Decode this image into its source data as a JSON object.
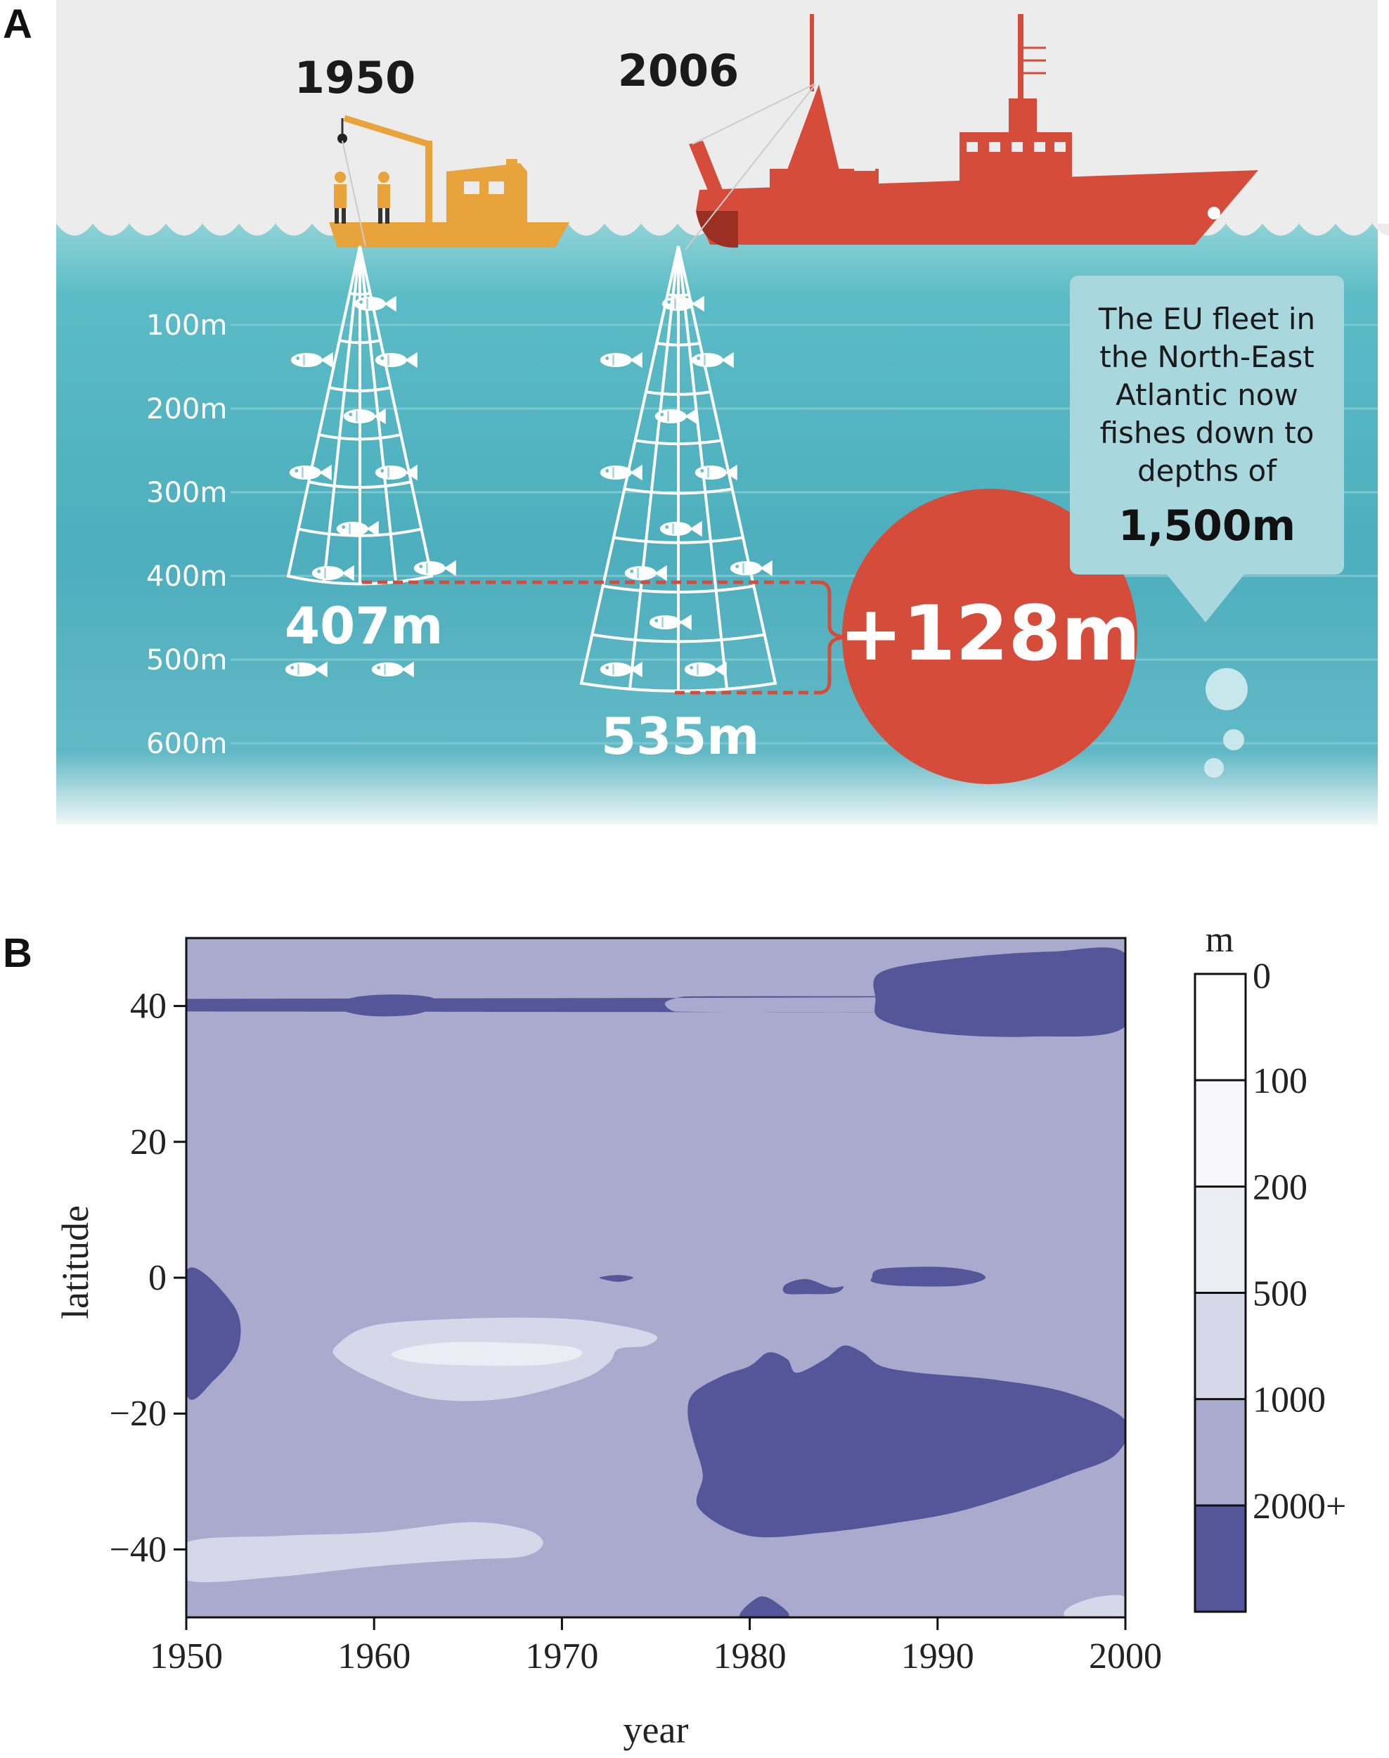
{
  "panel_a": {
    "letter": "A",
    "year_left": "1950",
    "year_right": "2006",
    "depth_labels": [
      "100m",
      "200m",
      "300m",
      "400m",
      "500m",
      "600m"
    ],
    "depth_1950": "407m",
    "depth_2006": "535m",
    "difference": "+128m",
    "callout_lines": [
      "The EU fleet in",
      "the North-East",
      "Atlantic now",
      "fishes down to",
      "depths of"
    ],
    "callout_value": "1,500m",
    "colors": {
      "sea": "#4fb1bf",
      "boat_1950": "#e8a33a",
      "boat_2006": "#d54c3a",
      "sky": "#ececec"
    }
  },
  "panel_b": {
    "letter": "B"
  },
  "chart_data": {
    "type": "heatmap",
    "xlabel": "year",
    "ylabel": "latitude",
    "xlim": [
      1950,
      2000
    ],
    "ylim": [
      -50,
      50
    ],
    "x_ticks": [
      1950,
      1960,
      1970,
      1980,
      1990,
      2000
    ],
    "y_ticks": [
      40,
      20,
      0,
      -20,
      -40
    ],
    "y_tick_labels": [
      "40",
      "20",
      "0",
      "−20",
      "−40"
    ],
    "x_tick_labels": [
      "1950",
      "1960",
      "1970",
      "1980",
      "1990",
      "2000"
    ],
    "colorbar": {
      "unit": "m",
      "labels": [
        "0",
        "100",
        "200",
        "500",
        "1000",
        "2000+"
      ],
      "bands": [
        {
          "from": 0,
          "to": 100,
          "color": "#ffffff"
        },
        {
          "from": 100,
          "to": 200,
          "color": "#f8f8fb"
        },
        {
          "from": 200,
          "to": 500,
          "color": "#ececf4"
        },
        {
          "from": 500,
          "to": 1000,
          "color": "#d7d7ea"
        },
        {
          "from": 1000,
          "to": 2000,
          "color": "#aaaacf"
        },
        {
          "from": 2000,
          "to": "2000+",
          "color": "#55559a"
        }
      ]
    },
    "background_level": "1000",
    "regions": [
      {
        "level": "2000+",
        "points": [
          [
            1950,
            1
          ],
          [
            1952.5,
            -4
          ],
          [
            1952.8,
            -10
          ],
          [
            1951.5,
            -15
          ],
          [
            1950,
            -17
          ]
        ]
      },
      {
        "level": "2000+",
        "points": [
          [
            1957.8,
            40
          ],
          [
            1959,
            41.3
          ],
          [
            1961,
            41.7
          ],
          [
            1963,
            41.3
          ],
          [
            1963.3,
            40
          ],
          [
            1962,
            38.7
          ],
          [
            1959.5,
            38.6
          ]
        ]
      },
      {
        "level": "2000+",
        "points": [
          [
            1975.5,
            40.5
          ],
          [
            1976.5,
            41.4
          ],
          [
            1977.5,
            41.2
          ],
          [
            1779.0,
            40.0
          ],
          [
            1977.5,
            39.1
          ],
          [
            1976,
            39.2
          ]
        ]
      },
      {
        "level": "2000+",
        "points": [
          [
            1987,
            45
          ],
          [
            1991,
            47
          ],
          [
            1996,
            48
          ],
          [
            2000,
            47.7
          ],
          [
            2000,
            37
          ],
          [
            1995,
            35.5
          ],
          [
            1990,
            36
          ],
          [
            1987,
            38
          ],
          [
            1986.7,
            41
          ]
        ]
      },
      {
        "level": "2000+",
        "points": [
          [
            1972,
            0
          ],
          [
            1973,
            0.4
          ],
          [
            1973.8,
            0
          ],
          [
            1973,
            -0.6
          ]
        ]
      },
      {
        "level": "2000+",
        "points": [
          [
            1981.9,
            -1
          ],
          [
            1983,
            -0.2
          ],
          [
            1984.3,
            -1.4
          ],
          [
            1985,
            -1.3
          ],
          [
            1984.5,
            -2.3
          ],
          [
            1983,
            -2.4
          ],
          [
            1981.9,
            -2.3
          ]
        ]
      },
      {
        "level": "2000+",
        "points": [
          [
            1986.5,
            0
          ],
          [
            1987,
            1.3
          ],
          [
            1990,
            1.6
          ],
          [
            1992,
            0.9
          ],
          [
            1992.5,
            -0.2
          ],
          [
            1991,
            -1.2
          ],
          [
            1988,
            -1.2
          ],
          [
            1986.6,
            -0.7
          ]
        ]
      },
      {
        "level": "2000+",
        "points": [
          [
            1977,
            -17
          ],
          [
            1978.5,
            -14.5
          ],
          [
            1980,
            -13
          ],
          [
            1981,
            -11
          ],
          [
            1982,
            -12
          ],
          [
            1982.5,
            -14
          ],
          [
            1984,
            -12
          ],
          [
            1985,
            -10
          ],
          [
            1986,
            -11
          ],
          [
            1987,
            -13
          ],
          [
            1989,
            -14
          ],
          [
            1993,
            -15
          ],
          [
            1997,
            -17
          ],
          [
            2000,
            -21
          ],
          [
            1999.5,
            -26
          ],
          [
            1997,
            -29
          ],
          [
            1994,
            -32
          ],
          [
            1991,
            -34.5
          ],
          [
            1988,
            -36
          ],
          [
            1984,
            -37.5
          ],
          [
            1980,
            -38
          ],
          [
            1977.3,
            -34
          ],
          [
            1977.5,
            -29
          ],
          [
            1977,
            -24
          ],
          [
            1976.7,
            -20
          ]
        ]
      },
      {
        "level": "2000+",
        "points": [
          [
            1979.5,
            -50
          ],
          [
            1980.5,
            -47
          ],
          [
            1981.5,
            -48
          ],
          [
            1982,
            -50
          ]
        ]
      },
      {
        "level": "500",
        "points": [
          [
            1958,
            -10
          ],
          [
            1960,
            -7
          ],
          [
            1965,
            -6
          ],
          [
            1970,
            -6
          ],
          [
            1973,
            -7
          ],
          [
            1975,
            -8.5
          ],
          [
            1974.5,
            -10
          ],
          [
            1973,
            -10.5
          ],
          [
            1972.5,
            -12.5
          ],
          [
            1971,
            -15
          ],
          [
            1967,
            -17.8
          ],
          [
            1963,
            -17.8
          ],
          [
            1960,
            -15
          ],
          [
            1958.1,
            -12
          ]
        ]
      },
      {
        "level": "500",
        "points": [
          [
            1950,
            -39
          ],
          [
            1955,
            -38
          ],
          [
            1960,
            -37.5
          ],
          [
            1965,
            -36
          ],
          [
            1968,
            -37
          ],
          [
            1969,
            -39
          ],
          [
            1968,
            -41
          ],
          [
            1965,
            -41.5
          ],
          [
            1960,
            -42.5
          ],
          [
            1955,
            -44
          ],
          [
            1950,
            -44.5
          ]
        ]
      },
      {
        "level": "500",
        "points": [
          [
            1997,
            -48.5
          ],
          [
            1998.5,
            -47
          ],
          [
            2000,
            -47
          ],
          [
            2000,
            -50
          ],
          [
            1997,
            -50
          ]
        ]
      },
      {
        "level": "200",
        "points": [
          [
            1961,
            -11
          ],
          [
            1964,
            -9.5
          ],
          [
            1970,
            -10
          ],
          [
            1971,
            -11.5
          ],
          [
            1969,
            -12.8
          ],
          [
            1965,
            -12.9
          ],
          [
            1962,
            -12.4
          ]
        ]
      }
    ]
  }
}
